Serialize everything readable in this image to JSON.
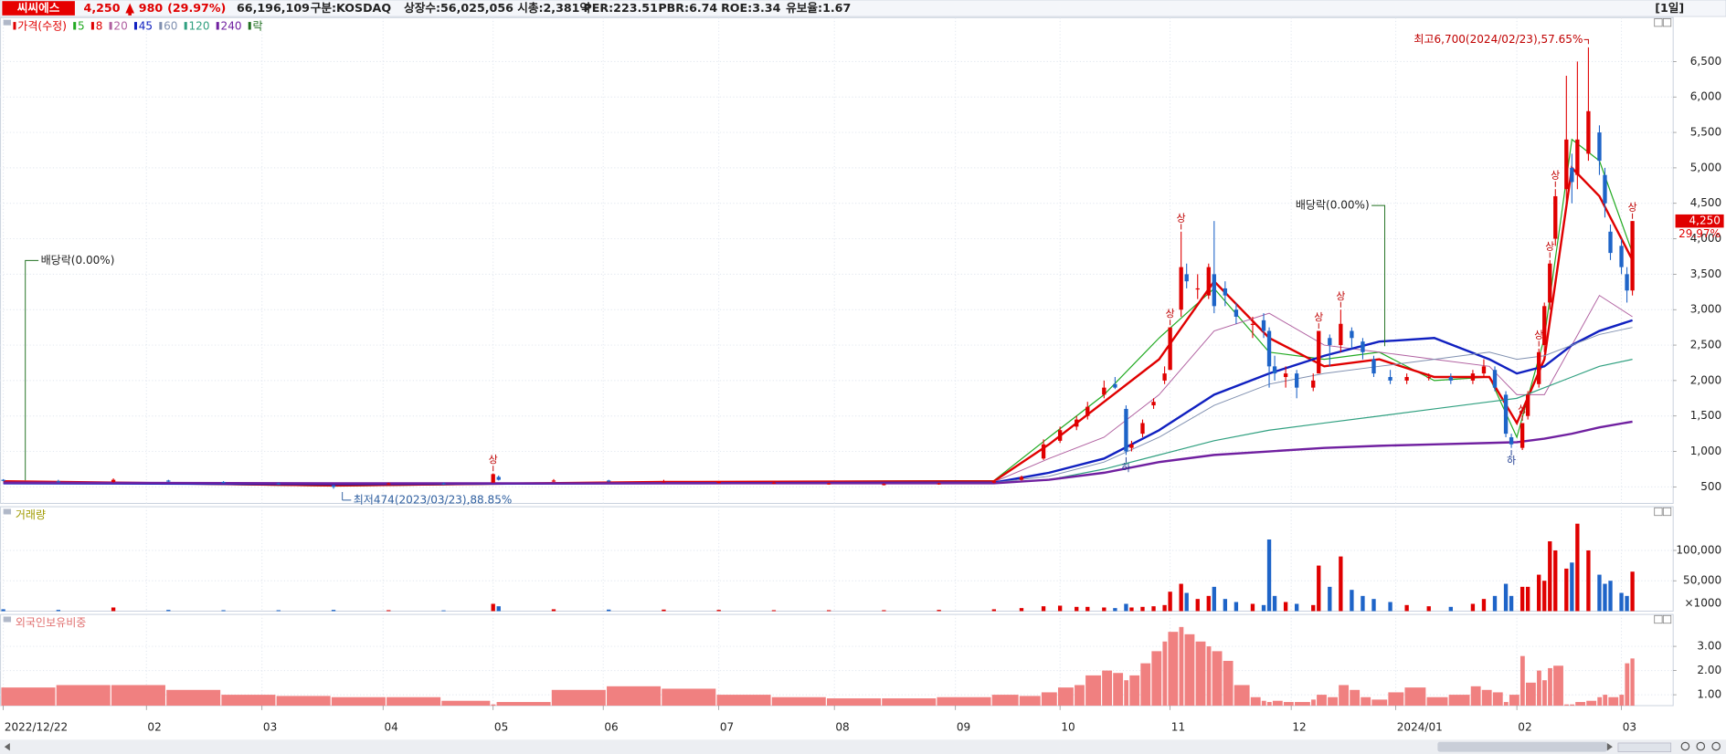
{
  "header": {
    "name": "씨씨에스",
    "price": "4,250",
    "change": "980",
    "change_pct": "(29.97%)",
    "volume": "66,196,109",
    "fields": [
      "구분:KOSDAQ",
      "상장수:56,025,056",
      "시총:2,381억",
      "PER:223.51",
      "PBR:6.74",
      "ROE:3.34",
      "유보율:1.67"
    ],
    "period": "[1일]"
  },
  "chart_data": [
    {
      "type": "candlestick",
      "xlim": [
        -0.6,
        303.4
      ],
      "xticks": [
        {
          "value": 0,
          "label": "2022/12/22"
        },
        {
          "value": 26,
          "label": "02"
        },
        {
          "value": 47,
          "label": "03"
        },
        {
          "value": 69,
          "label": "04"
        },
        {
          "value": 89,
          "label": "05"
        },
        {
          "value": 109,
          "label": "06"
        },
        {
          "value": 130,
          "label": "07"
        },
        {
          "value": 151,
          "label": "08"
        },
        {
          "value": 173,
          "label": "09"
        },
        {
          "value": 192,
          "label": "10"
        },
        {
          "value": 212,
          "label": "11"
        },
        {
          "value": 234,
          "label": "12"
        },
        {
          "value": 253,
          "label": "2024/01"
        },
        {
          "value": 275,
          "label": "02"
        },
        {
          "value": 294,
          "label": "03"
        }
      ],
      "ylim": [
        267,
        7120
      ],
      "yticks": [
        500,
        {
          "value": 1000,
          "label": "1,000"
        },
        {
          "value": 1500,
          "label": "1,500"
        },
        {
          "value": 2000,
          "label": "2,000"
        },
        {
          "value": 2500,
          "label": "2,500"
        },
        {
          "value": 3000,
          "label": "3,000"
        },
        {
          "value": 3500,
          "label": "3,500"
        },
        {
          "value": 4000,
          "label": "4,000"
        },
        {
          "value": 4500,
          "label": "4,500"
        },
        {
          "value": 5000,
          "label": "5,000"
        },
        {
          "value": 5500,
          "label": "5,500"
        },
        {
          "value": 6000,
          "label": "6,000"
        },
        {
          "value": 6500,
          "label": "6,500"
        }
      ],
      "grid": true,
      "candles": {
        "name": "가격(수정)",
        "up_color": "#e00000",
        "down_color": "#1e64c8",
        "x": [
          0,
          10,
          20,
          30,
          40,
          50,
          60,
          70,
          80,
          89,
          90,
          100,
          110,
          120,
          130,
          140,
          150,
          160,
          170,
          180,
          185,
          189,
          192,
          195,
          197,
          200,
          202,
          204,
          205,
          207,
          209,
          211,
          212,
          214,
          215,
          217,
          219,
          220,
          222,
          224,
          227,
          229,
          230,
          231,
          233,
          235,
          238,
          239,
          241,
          243,
          245,
          247,
          249,
          252,
          255,
          259,
          263,
          267,
          269,
          271,
          273,
          274,
          276,
          277,
          279,
          280,
          281,
          282,
          284,
          285,
          286,
          288,
          290,
          291,
          292,
          294,
          295,
          296
        ],
        "open": [
          600,
          580,
          570,
          590,
          570,
          550,
          520,
          540,
          550,
          560,
          640,
          590,
          590,
          570,
          560,
          550,
          540,
          530,
          540,
          560,
          600,
          900,
          1150,
          1350,
          1500,
          1800,
          1950,
          1600,
          1050,
          1250,
          1650,
          2000,
          2150,
          3000,
          3500,
          3300,
          3200,
          3500,
          3300,
          3000,
          2800,
          2850,
          2700,
          2200,
          2050,
          2100,
          1900,
          2100,
          2600,
          2500,
          2700,
          2550,
          2300,
          2050,
          2000,
          2050,
          2050,
          2000,
          2100,
          2150,
          1800,
          1200,
          1050,
          1500,
          1950,
          2500,
          3100,
          4000,
          4700,
          5000,
          4900,
          5200,
          5500,
          4900,
          4100,
          3900,
          3500,
          3270
        ],
        "high": [
          610,
          600,
          620,
          600,
          580,
          560,
          530,
          560,
          560,
          690,
          660,
          610,
          600,
          600,
          580,
          570,
          560,
          550,
          560,
          590,
          660,
          1170,
          1350,
          1500,
          1700,
          2000,
          2050,
          1650,
          1150,
          1450,
          1750,
          2200,
          2750,
          4100,
          3650,
          3500,
          3650,
          4250,
          3400,
          3100,
          2900,
          2950,
          2750,
          2350,
          2200,
          2150,
          2100,
          2700,
          2650,
          3000,
          2750,
          2600,
          2350,
          2150,
          2100,
          2100,
          2100,
          2150,
          2300,
          2200,
          1850,
          1250,
          1400,
          1850,
          2450,
          3100,
          3700,
          4700,
          6300,
          5200,
          6500,
          6700,
          5600,
          5000,
          4200,
          4000,
          3600,
          4250
        ],
        "low": [
          580,
          560,
          560,
          570,
          550,
          530,
          474,
          530,
          530,
          560,
          590,
          570,
          570,
          560,
          550,
          540,
          530,
          520,
          530,
          550,
          590,
          880,
          1120,
          1300,
          1450,
          1750,
          1880,
          950,
          1000,
          1200,
          1600,
          1950,
          2150,
          2900,
          3300,
          3150,
          3150,
          2950,
          3050,
          2800,
          2600,
          2600,
          1900,
          2000,
          1900,
          1750,
          1850,
          2100,
          2200,
          2400,
          2450,
          2300,
          2050,
          1950,
          1950,
          2000,
          1950,
          1950,
          2050,
          1850,
          1200,
          1050,
          1020,
          1450,
          1900,
          2400,
          3000,
          3900,
          4500,
          4500,
          4700,
          5100,
          4900,
          4300,
          3700,
          3500,
          3100,
          3200
        ],
        "close": [
          590,
          570,
          600,
          580,
          560,
          540,
          500,
          550,
          540,
          680,
          600,
          590,
          580,
          580,
          570,
          560,
          550,
          540,
          550,
          580,
          640,
          1100,
          1300,
          1450,
          1630,
          1900,
          1900,
          1000,
          1100,
          1400,
          1700,
          2100,
          2750,
          3600,
          3400,
          3300,
          3600,
          3050,
          3200,
          2900,
          2800,
          2700,
          2200,
          2100,
          2100,
          1900,
          2000,
          2700,
          2500,
          2800,
          2600,
          2400,
          2100,
          2000,
          2050,
          2050,
          2000,
          2100,
          2200,
          1900,
          1250,
          1100,
          1400,
          1800,
          2400,
          3050,
          3650,
          4600,
          5400,
          4800,
          5400,
          5800,
          5100,
          4500,
          3800,
          3600,
          3270,
          4250
        ]
      },
      "series": [
        {
          "name": "5",
          "color": "#22aa22",
          "width": 1,
          "x": [
            0,
            60,
            120,
            180,
            190,
            200,
            210,
            220,
            230,
            240,
            250,
            260,
            270,
            275,
            280,
            285,
            290,
            296
          ],
          "values": [
            580,
            510,
            570,
            590,
            1200,
            1800,
            2600,
            3300,
            2400,
            2300,
            2400,
            2000,
            2050,
            1200,
            2600,
            5400,
            5100,
            3800
          ]
        },
        {
          "name": "8",
          "color": "#e00000",
          "width": 2,
          "x": [
            0,
            60,
            120,
            180,
            190,
            200,
            210,
            220,
            230,
            240,
            250,
            260,
            270,
            275,
            280,
            285,
            290,
            296
          ],
          "values": [
            580,
            520,
            570,
            580,
            1100,
            1700,
            2300,
            3400,
            2600,
            2200,
            2300,
            2050,
            2050,
            1400,
            2300,
            5000,
            4600,
            3700
          ]
        },
        {
          "name": "20",
          "color": "#b060a0",
          "width": 0.8,
          "x": [
            0,
            60,
            120,
            180,
            190,
            200,
            210,
            220,
            230,
            240,
            250,
            260,
            270,
            275,
            280,
            285,
            290,
            296
          ],
          "values": [
            570,
            540,
            560,
            570,
            900,
            1200,
            1800,
            2700,
            2950,
            2500,
            2400,
            2300,
            2200,
            1800,
            1800,
            2500,
            3200,
            2900
          ]
        },
        {
          "name": "45",
          "color": "#1020c0",
          "width": 2,
          "x": [
            0,
            60,
            120,
            180,
            190,
            200,
            210,
            220,
            230,
            240,
            250,
            260,
            270,
            275,
            280,
            285,
            290,
            296
          ],
          "values": [
            550,
            540,
            550,
            560,
            700,
            900,
            1300,
            1800,
            2100,
            2350,
            2550,
            2600,
            2300,
            2100,
            2200,
            2500,
            2700,
            2850
          ]
        },
        {
          "name": "60",
          "color": "#8090b0",
          "width": 0.8,
          "x": [
            0,
            60,
            120,
            180,
            190,
            200,
            210,
            220,
            230,
            240,
            250,
            260,
            270,
            275,
            280,
            285,
            290,
            296
          ],
          "values": [
            560,
            550,
            550,
            560,
            650,
            850,
            1200,
            1650,
            1950,
            2100,
            2200,
            2300,
            2400,
            2300,
            2350,
            2500,
            2650,
            2750
          ]
        },
        {
          "name": "120",
          "color": "#30a080",
          "width": 1,
          "x": [
            0,
            60,
            120,
            180,
            190,
            200,
            210,
            220,
            230,
            240,
            250,
            260,
            270,
            275,
            280,
            285,
            290,
            296
          ],
          "values": [
            560,
            550,
            550,
            550,
            600,
            750,
            950,
            1150,
            1300,
            1400,
            1500,
            1600,
            1700,
            1750,
            1900,
            2050,
            2200,
            2300
          ]
        },
        {
          "name": "240",
          "color": "#7020a0",
          "width": 2,
          "x": [
            0,
            60,
            120,
            180,
            190,
            200,
            210,
            220,
            230,
            240,
            250,
            260,
            270,
            275,
            280,
            285,
            290,
            296
          ],
          "values": [
            560,
            550,
            550,
            550,
            600,
            700,
            850,
            950,
            1000,
            1050,
            1080,
            1100,
            1120,
            1130,
            1180,
            1250,
            1340,
            1420
          ]
        }
      ],
      "ex_dividend": {
        "name": "락",
        "color": "#207020",
        "labels": [
          "배당락(0.00%)",
          "배당락(0.00%)"
        ],
        "x": [
          4,
          251
        ]
      },
      "limit_up": {
        "label": "상",
        "color": "#c00000",
        "x": [
          89,
          212,
          214,
          239,
          243,
          276,
          279,
          281,
          282,
          296
        ]
      },
      "limit_down": {
        "label": "하",
        "color": "#1e3c90",
        "x": [
          204,
          274
        ]
      },
      "high_note": {
        "label": "최고6,700(2024/02/23),57.65%",
        "x": 288,
        "value": 6700,
        "color": "#c00000"
      },
      "low_note": {
        "label": "최저474(2023/03/23),88.85%",
        "x": 60,
        "value": 474,
        "color": "#3060a0"
      },
      "current": {
        "value": 4250,
        "label": "4,250",
        "change": "29.97%",
        "color": "#e00000"
      }
    },
    {
      "type": "bar",
      "title": "거래량",
      "unit_label": "×1000",
      "ylim": [
        0,
        172000
      ],
      "yticks": [
        {
          "value": 50000,
          "label": "50,000"
        },
        {
          "value": 100000,
          "label": "100,000"
        }
      ],
      "values": [
        3000,
        2000,
        6000,
        2000,
        1500,
        1500,
        2000,
        1500,
        1200,
        12000,
        8000,
        3000,
        2500,
        2500,
        2000,
        1500,
        1500,
        1500,
        2000,
        3000,
        5000,
        8000,
        9000,
        7000,
        7000,
        6000,
        5000,
        12000,
        6000,
        7000,
        8000,
        10000,
        32000,
        45000,
        30000,
        20000,
        25000,
        40000,
        20000,
        15000,
        12000,
        10000,
        118000,
        25000,
        15000,
        12000,
        10000,
        75000,
        40000,
        90000,
        35000,
        25000,
        20000,
        15000,
        10000,
        8000,
        7000,
        12000,
        20000,
        25000,
        45000,
        25000,
        40000,
        40000,
        60000,
        50000,
        115000,
        100000,
        70000,
        80000,
        144000,
        100000,
        60000,
        45000,
        50000,
        30000,
        25000,
        65000
      ]
    },
    {
      "type": "bar",
      "title": "외국인보유비중",
      "color": "#f08080",
      "ylim": [
        0.55,
        4.32
      ],
      "yticks": [
        {
          "value": 1,
          "label": "1.00"
        },
        {
          "value": 2,
          "label": "2.00"
        },
        {
          "value": 3,
          "label": "3.00"
        }
      ],
      "values": [
        1.3,
        1.4,
        1.4,
        1.2,
        1.0,
        0.95,
        0.9,
        0.9,
        0.75,
        0.6,
        0.7,
        1.2,
        1.35,
        1.25,
        1.0,
        0.9,
        0.85,
        0.85,
        0.9,
        1.0,
        0.95,
        1.1,
        1.3,
        1.4,
        1.8,
        2.0,
        1.9,
        1.6,
        1.8,
        2.3,
        2.8,
        3.2,
        3.6,
        3.8,
        3.5,
        3.2,
        3.0,
        2.8,
        2.4,
        1.4,
        0.9,
        0.75,
        0.7,
        0.75,
        0.7,
        0.7,
        0.8,
        1.0,
        0.9,
        1.4,
        1.2,
        0.9,
        0.8,
        1.1,
        1.3,
        0.9,
        1.0,
        1.35,
        1.2,
        1.1,
        0.7,
        1.0,
        2.6,
        1.5,
        2.0,
        1.6,
        2.1,
        2.2,
        0.6,
        0.6,
        0.7,
        0.75,
        0.9,
        1.0,
        0.9,
        1.0,
        2.3,
        2.5
      ]
    }
  ]
}
